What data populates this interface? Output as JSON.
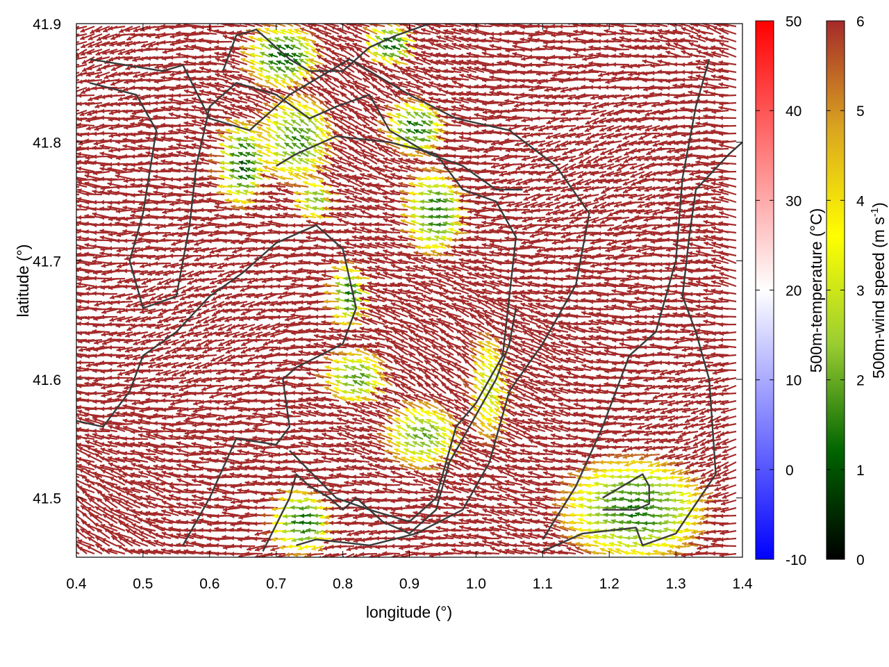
{
  "chart_data": {
    "type": "vector-field",
    "title": "",
    "xlabel": "longitude (°)",
    "ylabel": "latitude (°)",
    "xlim": [
      0.4,
      1.4
    ],
    "ylim": [
      41.45,
      41.9
    ],
    "xticks": [
      "0.4",
      "0.5",
      "0.6",
      "0.7",
      "0.8",
      "0.9",
      "1.0",
      "1.1",
      "1.2",
      "1.3",
      "1.4"
    ],
    "yticks": [
      "41.5",
      "41.6",
      "41.7",
      "41.8",
      "41.9"
    ],
    "grid": false,
    "colorbars": [
      {
        "label": "500m-temperature (°C)",
        "range": [
          -10,
          50
        ],
        "ticks": [
          "-10",
          "0",
          "10",
          "20",
          "30",
          "40",
          "50"
        ],
        "colors": [
          "#0000ff",
          "#ffffff",
          "#ff0000"
        ]
      },
      {
        "label": "500m-wind speed (m s",
        "label_sup": "-1",
        "label_tail": ")",
        "range": [
          0,
          6
        ],
        "ticks": [
          "0",
          "1",
          "2",
          "3",
          "4",
          "5",
          "6"
        ],
        "colors": [
          "#000000",
          "#006400",
          "#9acd32",
          "#ffff00",
          "#daa520",
          "#a52a2a"
        ]
      }
    ],
    "field": {
      "description_color_dominant": "#a52a2a",
      "calm_zones_color": "#ffff00",
      "mean_direction": "west-north-west",
      "predominant_speed": 6
    },
    "contours": [
      [
        [
          0.42,
          41.87
        ],
        [
          0.53,
          41.86
        ],
        [
          0.56,
          41.865
        ],
        [
          0.6,
          41.82
        ],
        [
          0.66,
          41.81
        ],
        [
          0.72,
          41.84
        ],
        [
          0.81,
          41.87
        ],
        [
          0.9,
          41.84
        ],
        [
          0.97,
          41.82
        ],
        [
          1.05,
          41.81
        ],
        [
          1.12,
          41.78
        ],
        [
          1.17,
          41.74
        ],
        [
          1.15,
          41.68
        ],
        [
          1.1,
          41.63
        ],
        [
          1.05,
          41.59
        ],
        [
          1.02,
          41.53
        ],
        [
          0.98,
          41.49
        ],
        [
          0.91,
          41.47
        ],
        [
          0.84,
          41.46
        ],
        [
          0.76,
          41.465
        ],
        [
          0.73,
          41.46
        ]
      ],
      [
        [
          0.42,
          41.85
        ],
        [
          0.49,
          41.84
        ],
        [
          0.52,
          41.81
        ],
        [
          0.5,
          41.74
        ],
        [
          0.48,
          41.7
        ],
        [
          0.5,
          41.66
        ],
        [
          0.55,
          41.67
        ],
        [
          0.57,
          41.73
        ],
        [
          0.58,
          41.78
        ],
        [
          0.6,
          41.83
        ],
        [
          0.64,
          41.85
        ],
        [
          0.7,
          41.84
        ],
        [
          0.75,
          41.82
        ],
        [
          0.79,
          41.83
        ],
        [
          0.84,
          41.84
        ],
        [
          0.87,
          41.81
        ],
        [
          0.93,
          41.79
        ],
        [
          0.98,
          41.78
        ],
        [
          1.03,
          41.76
        ],
        [
          1.07,
          41.76
        ]
      ],
      [
        [
          0.56,
          41.46
        ],
        [
          0.6,
          41.5
        ],
        [
          0.64,
          41.55
        ],
        [
          0.7,
          41.545
        ],
        [
          0.72,
          41.56
        ],
        [
          0.71,
          41.6
        ],
        [
          0.73,
          41.61
        ],
        [
          0.8,
          41.63
        ],
        [
          0.82,
          41.66
        ],
        [
          0.8,
          41.71
        ],
        [
          0.76,
          41.73
        ],
        [
          0.7,
          41.715
        ],
        [
          0.65,
          41.69
        ],
        [
          0.6,
          41.67
        ],
        [
          0.55,
          41.64
        ],
        [
          0.5,
          41.62
        ],
        [
          0.48,
          41.59
        ],
        [
          0.44,
          41.56
        ],
        [
          0.4,
          41.565
        ]
      ],
      [
        [
          0.72,
          41.54
        ],
        [
          0.79,
          41.5
        ],
        [
          0.84,
          41.49
        ],
        [
          0.9,
          41.48
        ],
        [
          0.94,
          41.5
        ],
        [
          0.97,
          41.56
        ],
        [
          1.0,
          41.58
        ],
        [
          1.04,
          41.62
        ],
        [
          1.05,
          41.67
        ],
        [
          1.06,
          41.72
        ],
        [
          1.03,
          41.75
        ],
        [
          0.98,
          41.76
        ],
        [
          0.94,
          41.79
        ],
        [
          0.87,
          41.8
        ],
        [
          0.79,
          41.805
        ],
        [
          0.73,
          41.79
        ],
        [
          0.7,
          41.78
        ]
      ],
      [
        [
          1.1,
          41.455
        ],
        [
          1.16,
          41.47
        ],
        [
          1.24,
          41.475
        ],
        [
          1.25,
          41.46
        ],
        [
          1.3,
          41.47
        ],
        [
          1.36,
          41.52
        ],
        [
          1.35,
          41.6
        ],
        [
          1.33,
          41.64
        ],
        [
          1.31,
          41.67
        ],
        [
          1.32,
          41.72
        ],
        [
          1.33,
          41.76
        ],
        [
          1.38,
          41.79
        ],
        [
          1.4,
          41.8
        ]
      ],
      [
        [
          1.1,
          41.465
        ],
        [
          1.15,
          41.51
        ],
        [
          1.19,
          41.56
        ],
        [
          1.23,
          41.62
        ],
        [
          1.27,
          41.64
        ],
        [
          1.3,
          41.7
        ],
        [
          1.31,
          41.77
        ],
        [
          1.33,
          41.83
        ],
        [
          1.35,
          41.87
        ]
      ],
      [
        [
          0.68,
          41.455
        ],
        [
          0.72,
          41.5
        ],
        [
          0.73,
          41.52
        ],
        [
          0.75,
          41.51
        ],
        [
          0.78,
          41.5
        ],
        [
          0.8,
          41.49
        ],
        [
          0.82,
          41.5
        ],
        [
          0.86,
          41.48
        ],
        [
          0.9,
          41.47
        ],
        [
          0.94,
          41.49
        ],
        [
          0.96,
          41.53
        ],
        [
          0.99,
          41.56
        ],
        [
          1.03,
          41.6
        ],
        [
          1.05,
          41.63
        ],
        [
          1.06,
          41.66
        ]
      ],
      [
        [
          1.19,
          41.5
        ],
        [
          1.22,
          41.51
        ],
        [
          1.25,
          41.52
        ],
        [
          1.26,
          41.51
        ],
        [
          1.26,
          41.495
        ],
        [
          1.24,
          41.49
        ],
        [
          1.19,
          41.49
        ]
      ],
      [
        [
          0.62,
          41.86
        ],
        [
          0.64,
          41.89
        ],
        [
          0.67,
          41.895
        ],
        [
          0.7,
          41.88
        ],
        [
          0.72,
          41.87
        ],
        [
          0.75,
          41.86
        ],
        [
          0.8,
          41.86
        ],
        [
          0.84,
          41.88
        ],
        [
          0.88,
          41.89
        ],
        [
          0.93,
          41.9
        ]
      ]
    ]
  }
}
